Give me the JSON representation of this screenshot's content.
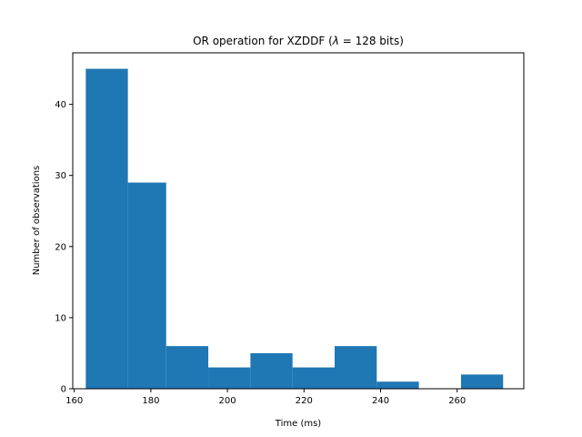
{
  "chart_data": {
    "type": "bar",
    "subtype": "histogram",
    "title_parts": {
      "before": "OR operation for XZDDF (",
      "symbol": "λ",
      "after": " = 128 bits)"
    },
    "xlabel": "Time (ms)",
    "ylabel": "Number of observations",
    "bin_edges": [
      163.0,
      174.0,
      184.0,
      195.0,
      206.0,
      217.0,
      228.0,
      239.0,
      250.0,
      261.0,
      272.0
    ],
    "counts": [
      45,
      29,
      6,
      3,
      5,
      3,
      6,
      1,
      0,
      2
    ],
    "xlim": [
      159.6,
      277.4
    ],
    "ylim": [
      0,
      47.25
    ],
    "xticks": [
      160,
      180,
      200,
      220,
      240,
      260
    ],
    "yticks": [
      0,
      10,
      20,
      30,
      40
    ],
    "grid": false,
    "bar_color": "#1f77b4"
  }
}
